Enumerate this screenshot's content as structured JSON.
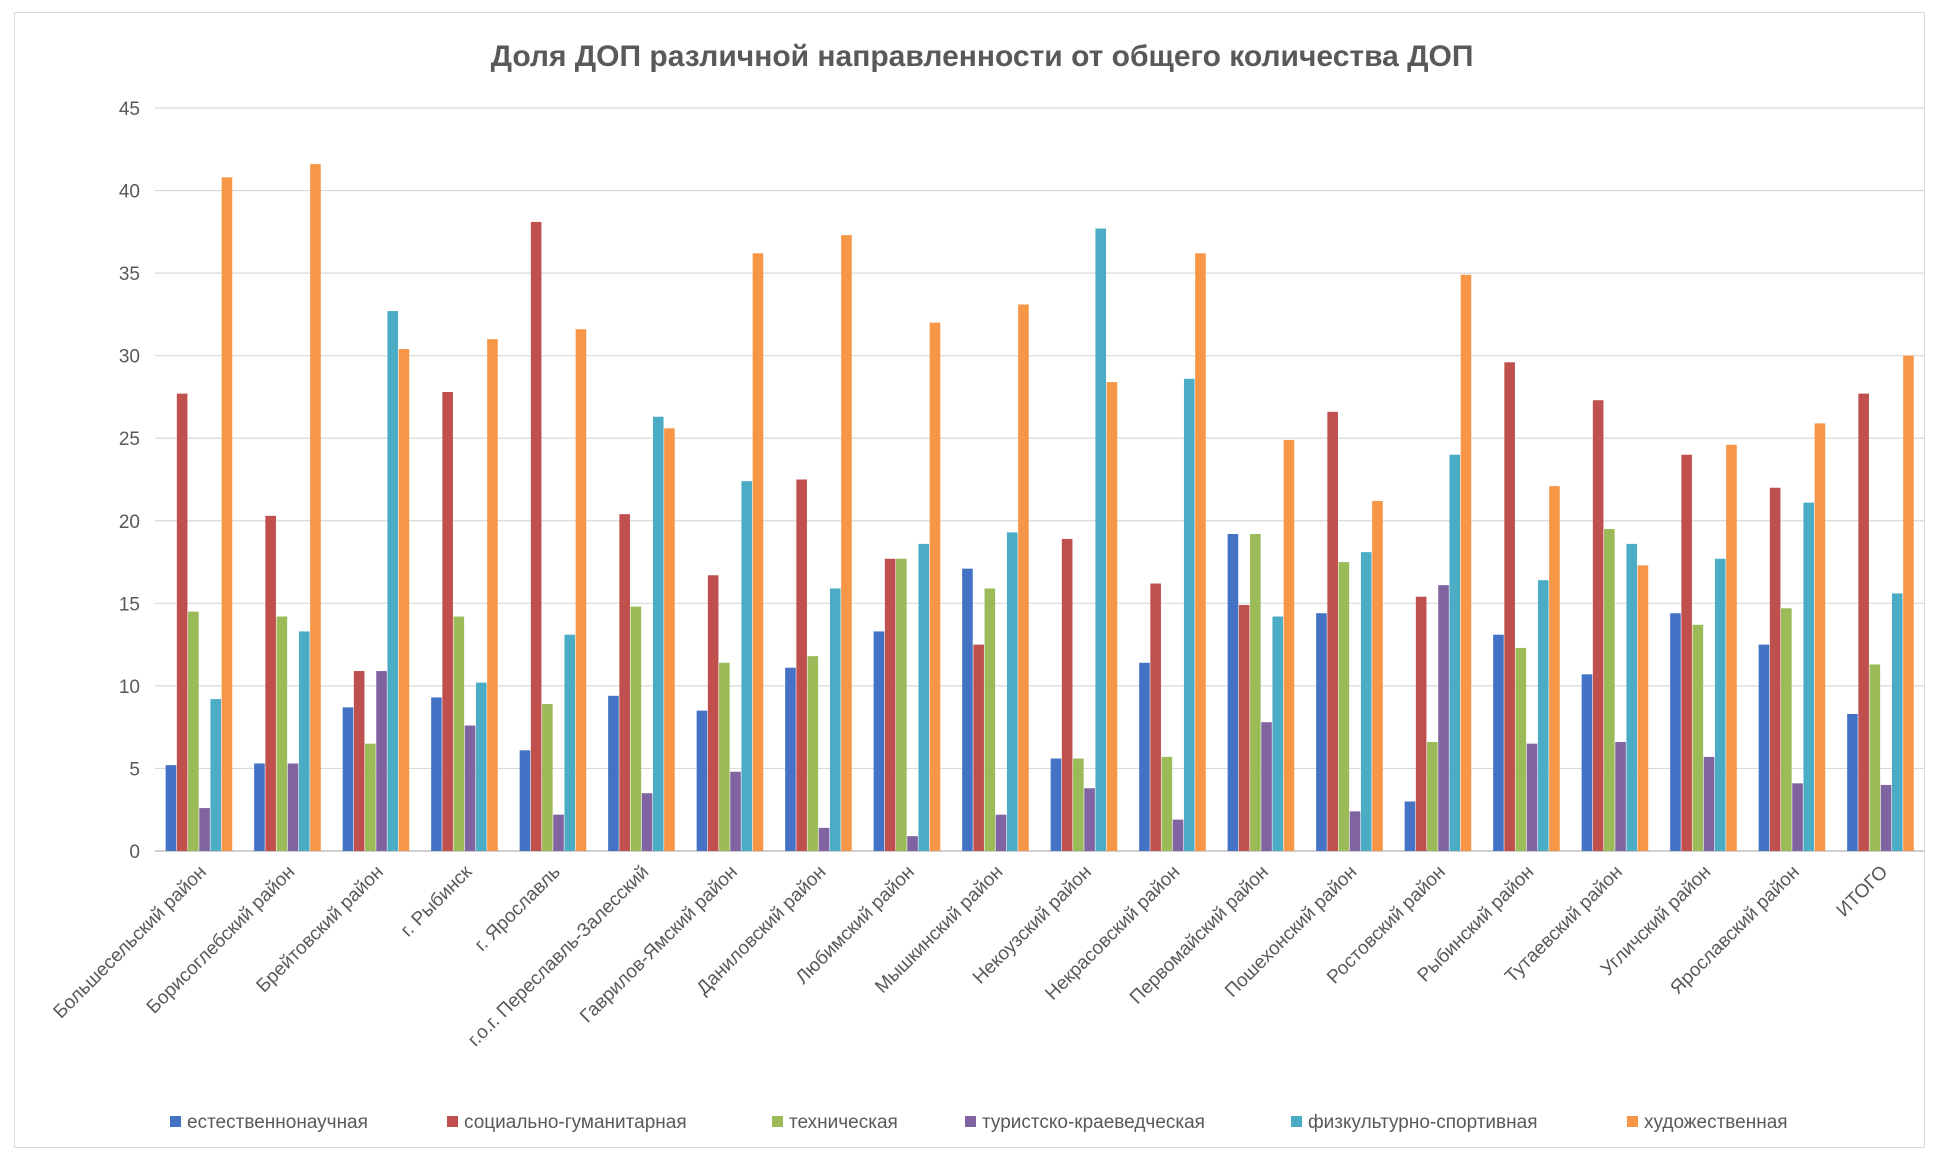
{
  "chart_data": {
    "type": "bar",
    "title": "Доля ДОП различной направленности от общего количества ДОП",
    "xlabel": "",
    "ylabel": "",
    "ylim": [
      0,
      45
    ],
    "yticks": [
      0,
      5,
      10,
      15,
      20,
      25,
      30,
      35,
      40,
      45
    ],
    "grid": true,
    "legend_position": "bottom",
    "categories": [
      "Большесельский район",
      "Борисоглебский район",
      "Брейтовский район",
      "г. Рыбинск",
      "г. Ярославль",
      "г.о.г. Переславль-Залесский",
      "Гаврилов-Ямский район",
      "Даниловский район",
      "Любимский район",
      "Мышкинский район",
      "Некоузский район",
      "Некрасовский район",
      "Первомайский район",
      "Пошехонский район",
      "Ростовский район",
      "Рыбинский район",
      "Тутаевский район",
      "Угличский район",
      "Ярославский район",
      "ИТОГО"
    ],
    "series": [
      {
        "name": "естественнонаучная",
        "color": "#4472C4",
        "values": [
          5.2,
          5.3,
          8.7,
          9.3,
          6.1,
          9.4,
          8.5,
          11.1,
          13.3,
          17.1,
          5.6,
          11.4,
          19.2,
          14.4,
          3.0,
          13.1,
          10.7,
          14.4,
          12.5,
          8.3
        ]
      },
      {
        "name": "социально-гуманитарная",
        "color": "#C0504D",
        "values": [
          27.7,
          20.3,
          10.9,
          27.8,
          38.1,
          20.4,
          16.7,
          22.5,
          17.7,
          12.5,
          18.9,
          16.2,
          14.9,
          26.6,
          15.4,
          29.6,
          27.3,
          24.0,
          22.0,
          27.7
        ]
      },
      {
        "name": "техническая",
        "color": "#9BBB59",
        "values": [
          14.5,
          14.2,
          6.5,
          14.2,
          8.9,
          14.8,
          11.4,
          11.8,
          17.7,
          15.9,
          5.6,
          5.7,
          19.2,
          17.5,
          6.6,
          12.3,
          19.5,
          13.7,
          14.7,
          11.3
        ]
      },
      {
        "name": "туристско-краеведческая",
        "color": "#8064A2",
        "values": [
          2.6,
          5.3,
          10.9,
          7.6,
          2.2,
          3.5,
          4.8,
          1.4,
          0.9,
          2.2,
          3.8,
          1.9,
          7.8,
          2.4,
          16.1,
          6.5,
          6.6,
          5.7,
          4.1,
          4.0
        ]
      },
      {
        "name": "физкультурно-спортивная",
        "color": "#4BACC6",
        "values": [
          9.2,
          13.3,
          32.7,
          10.2,
          13.1,
          26.3,
          22.4,
          15.9,
          18.6,
          19.3,
          37.7,
          28.6,
          14.2,
          18.1,
          24.0,
          16.4,
          18.6,
          17.7,
          21.1,
          15.6
        ]
      },
      {
        "name": "художественная",
        "color": "#F79646",
        "values": [
          40.8,
          41.6,
          30.4,
          31.0,
          31.6,
          25.6,
          36.2,
          37.3,
          32.0,
          33.1,
          28.4,
          36.2,
          24.9,
          21.2,
          34.9,
          22.1,
          17.3,
          24.6,
          25.9,
          30.0
        ]
      }
    ]
  }
}
